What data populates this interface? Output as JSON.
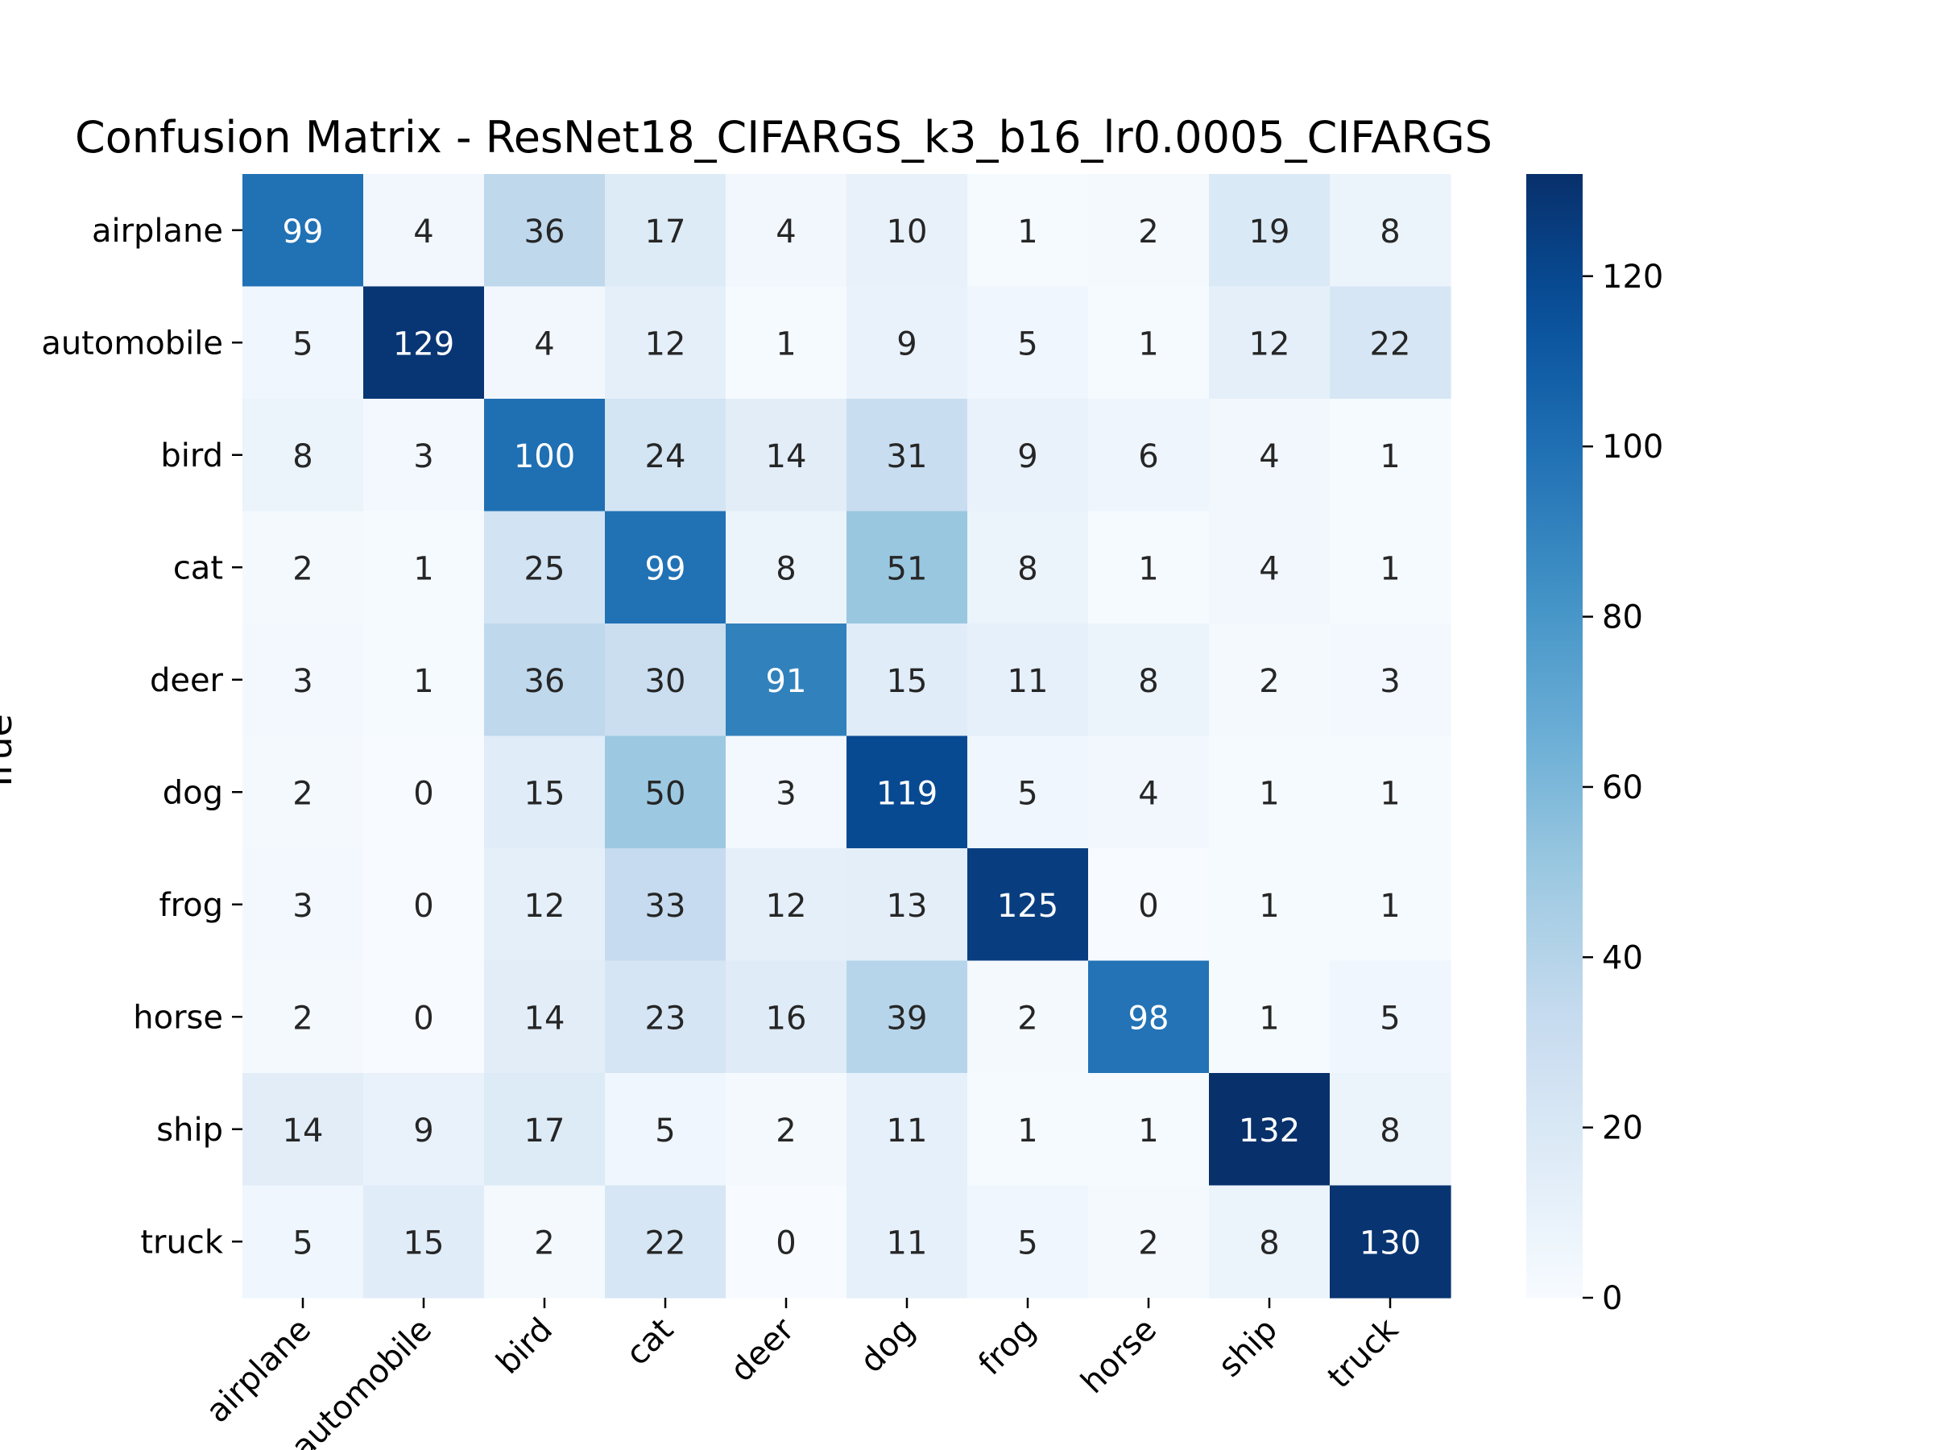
{
  "chart_data": {
    "type": "heatmap",
    "title": "Confusion Matrix - ResNet18_CIFARGS_k3_b16_lr0.0005_CIFARGS",
    "ylabel": "True",
    "xlabel": "",
    "row_labels": [
      "airplane",
      "automobile",
      "bird",
      "cat",
      "deer",
      "dog",
      "frog",
      "horse",
      "ship",
      "truck"
    ],
    "col_labels": [
      "airplane",
      "automobile",
      "bird",
      "cat",
      "deer",
      "dog",
      "frog",
      "horse",
      "ship",
      "truck"
    ],
    "values": [
      [
        99,
        4,
        36,
        17,
        4,
        10,
        1,
        2,
        19,
        8
      ],
      [
        5,
        129,
        4,
        12,
        1,
        9,
        5,
        1,
        12,
        22
      ],
      [
        8,
        3,
        100,
        24,
        14,
        31,
        9,
        6,
        4,
        1
      ],
      [
        2,
        1,
        25,
        99,
        8,
        51,
        8,
        1,
        4,
        1
      ],
      [
        3,
        1,
        36,
        30,
        91,
        15,
        11,
        8,
        2,
        3
      ],
      [
        2,
        0,
        15,
        50,
        3,
        119,
        5,
        4,
        1,
        1
      ],
      [
        3,
        0,
        12,
        33,
        12,
        13,
        125,
        0,
        1,
        1
      ],
      [
        2,
        0,
        14,
        23,
        16,
        39,
        2,
        98,
        1,
        5
      ],
      [
        14,
        9,
        17,
        5,
        2,
        11,
        1,
        1,
        132,
        8
      ],
      [
        5,
        15,
        2,
        22,
        0,
        11,
        5,
        2,
        8,
        130
      ]
    ],
    "colormap": "Blues",
    "colorbar": {
      "min": 0,
      "max": 132,
      "ticks": [
        0,
        20,
        40,
        60,
        80,
        100,
        120
      ]
    }
  }
}
